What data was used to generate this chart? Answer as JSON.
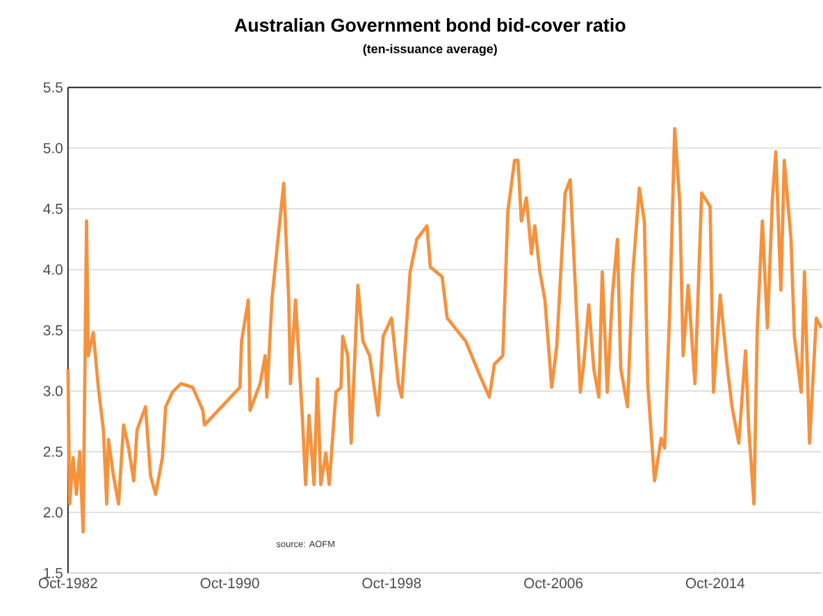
{
  "chart_data": {
    "type": "line",
    "title": "Australian Government bond bid-cover ratio",
    "subtitle": "(ten-issuance  average)",
    "annotations": [
      "source:  AOFM"
    ],
    "x": [
      "1982-10",
      "1982-11",
      "1983-01",
      "1983-03",
      "1983-05",
      "1983-07",
      "1983-09",
      "1983-10",
      "1984-01",
      "1984-04",
      "1984-07",
      "1984-09",
      "1984-10",
      "1985-01",
      "1985-04",
      "1985-07",
      "1985-10",
      "1986-01",
      "1986-03",
      "1986-08",
      "1986-11",
      "1987-02",
      "1987-06",
      "1987-08",
      "1987-12",
      "1988-05",
      "1988-12",
      "1989-06",
      "1989-07",
      "1991-04",
      "1991-05",
      "1991-09",
      "1991-10",
      "1992-04",
      "1992-07",
      "1992-08",
      "1992-11",
      "1993-02",
      "1993-06",
      "1993-09",
      "1993-10",
      "1994-01",
      "1994-05",
      "1994-07",
      "1994-09",
      "1994-12",
      "1995-02",
      "1995-04",
      "1995-07",
      "1995-09",
      "1996-01",
      "1996-04",
      "1996-05",
      "1996-08",
      "1996-10",
      "1997-02",
      "1997-05",
      "1997-09",
      "1998-02",
      "1998-05",
      "1998-10",
      "1999-02",
      "1999-04",
      "1999-09",
      "2000-01",
      "2000-07",
      "2000-09",
      "2001-04",
      "2001-07",
      "2002-06",
      "2003-02",
      "2003-08",
      "2003-11",
      "2004-04",
      "2004-07",
      "2004-11",
      "2005-01",
      "2005-03",
      "2005-06",
      "2005-09",
      "2005-11",
      "2006-02",
      "2006-05",
      "2006-09",
      "2006-12",
      "2007-05",
      "2007-08",
      "2008-02",
      "2008-04",
      "2008-07",
      "2008-10",
      "2009-01",
      "2009-03",
      "2009-06",
      "2009-09",
      "2009-12",
      "2010-02",
      "2010-06",
      "2010-09",
      "2011-01",
      "2011-04",
      "2011-06",
      "2011-10",
      "2012-02",
      "2012-04",
      "2012-07",
      "2012-10",
      "2013-01",
      "2013-03",
      "2013-06",
      "2013-10",
      "2014-02",
      "2014-07",
      "2014-09",
      "2015-01",
      "2015-05",
      "2015-08",
      "2015-12",
      "2016-04",
      "2016-06",
      "2016-09",
      "2016-11",
      "2017-02",
      "2017-05",
      "2017-08",
      "2017-10",
      "2018-01",
      "2018-03",
      "2018-07",
      "2018-09",
      "2019-01",
      "2019-03",
      "2019-06",
      "2019-10",
      "2020-01"
    ],
    "series": [
      {
        "color": "#f5923e",
        "values": [
          3.18,
          2.07,
          2.45,
          2.15,
          2.5,
          1.84,
          4.4,
          3.29,
          3.48,
          3.03,
          2.68,
          2.07,
          2.6,
          2.3,
          2.07,
          2.72,
          2.53,
          2.26,
          2.68,
          2.87,
          2.3,
          2.15,
          2.45,
          2.87,
          2.99,
          3.06,
          3.03,
          2.84,
          2.72,
          3.03,
          3.41,
          3.75,
          2.84,
          3.06,
          3.29,
          2.95,
          3.75,
          4.17,
          4.71,
          3.75,
          3.06,
          3.75,
          2.8,
          2.23,
          2.8,
          2.23,
          3.1,
          2.23,
          2.49,
          2.23,
          2.99,
          3.03,
          3.45,
          3.29,
          2.57,
          3.87,
          3.41,
          3.29,
          2.8,
          3.45,
          3.6,
          3.06,
          2.95,
          3.98,
          4.25,
          4.36,
          4.02,
          3.94,
          3.6,
          3.41,
          3.14,
          2.95,
          3.22,
          3.29,
          4.48,
          4.9,
          4.9,
          4.4,
          4.59,
          4.13,
          4.36,
          3.98,
          3.75,
          3.03,
          3.37,
          4.63,
          4.74,
          2.99,
          3.22,
          3.71,
          3.18,
          2.95,
          3.98,
          2.99,
          3.79,
          4.25,
          3.18,
          2.87,
          3.94,
          4.67,
          4.4,
          3.06,
          2.26,
          2.61,
          2.53,
          3.64,
          5.16,
          4.55,
          3.29,
          3.87,
          3.06,
          4.63,
          4.52,
          2.99,
          3.79,
          3.22,
          2.87,
          2.57,
          3.33,
          2.68,
          2.07,
          3.52,
          4.4,
          3.52,
          4.59,
          4.97,
          3.83,
          4.9,
          4.25,
          3.45,
          2.99,
          3.98,
          2.57,
          3.6,
          3.52
        ]
      }
    ],
    "xlim": [
      "1982-10",
      "2020-01"
    ],
    "xticks": [
      {
        "value": "1982-10",
        "label": "Oct-1982"
      },
      {
        "value": "1990-10",
        "label": "Oct-1990"
      },
      {
        "value": "1998-10",
        "label": "Oct-1998"
      },
      {
        "value": "2006-10",
        "label": "Oct-2006"
      },
      {
        "value": "2014-10",
        "label": "Oct-2014"
      }
    ],
    "ylim": [
      1.5,
      5.5
    ],
    "yticks": [
      {
        "value": 1.5,
        "label": "1.5"
      },
      {
        "value": 2.0,
        "label": "2.0"
      },
      {
        "value": 2.5,
        "label": "2.5"
      },
      {
        "value": 3.0,
        "label": "3.0"
      },
      {
        "value": 3.5,
        "label": "3.5"
      },
      {
        "value": 4.0,
        "label": "4.0"
      },
      {
        "value": 4.5,
        "label": "4.5"
      },
      {
        "value": 5.0,
        "label": "5.0"
      },
      {
        "value": 5.5,
        "label": "5.5"
      }
    ],
    "grid": "y"
  }
}
